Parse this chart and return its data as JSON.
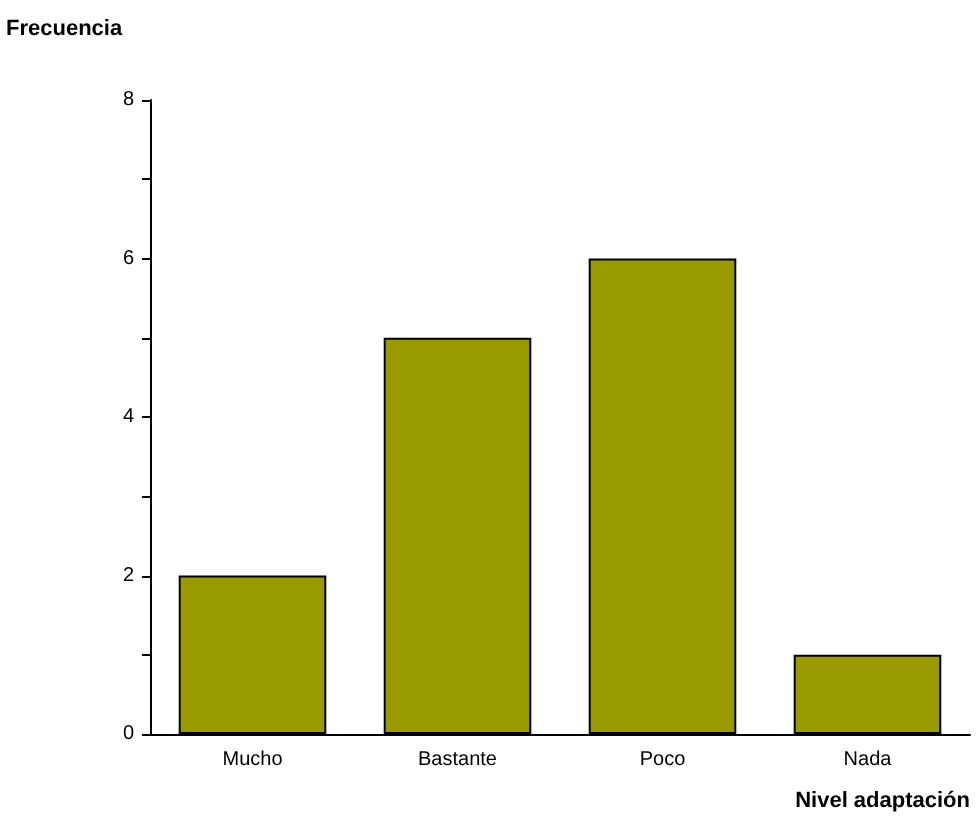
{
  "chart_data": {
    "type": "bar",
    "xlabel": "Nivel adaptación",
    "ylabel": "Frecuencia",
    "categories": [
      "Mucho",
      "Bastante",
      "Poco",
      "Nada"
    ],
    "values": [
      2,
      5,
      6,
      1
    ],
    "color": "#999900",
    "ylim": [
      0,
      8
    ],
    "yticks": [
      0,
      {
        "value": 1,
        "label": null
      },
      2,
      {
        "value": 3,
        "label": null
      },
      4,
      {
        "value": 5,
        "label": null
      },
      6,
      {
        "value": 7,
        "label": null
      },
      8
    ],
    "grid": false
  }
}
